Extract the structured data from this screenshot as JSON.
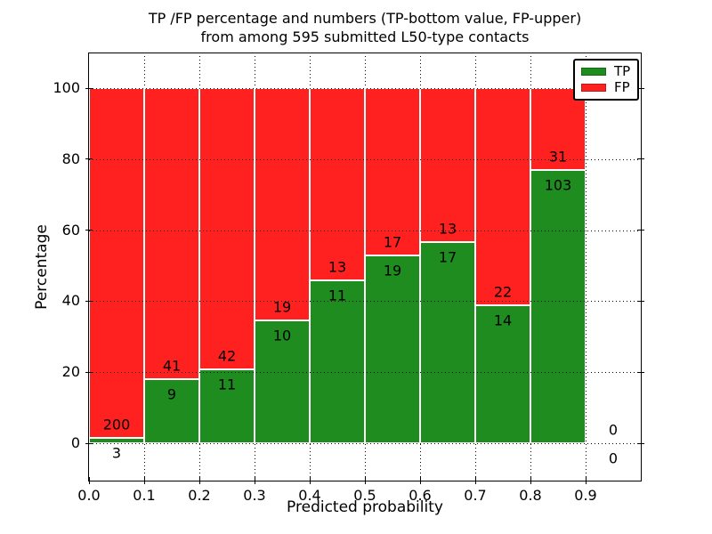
{
  "title": {
    "line1": "TP /FP percentage and numbers (TP-bottom value, FP-upper)",
    "line2": "from among 595 submitted L50-type contacts"
  },
  "axes": {
    "ylabel": "Percentage",
    "xlabel": "Predicted probability",
    "yticks": [
      0,
      20,
      40,
      60,
      80,
      100
    ],
    "xticks": [
      "0.0",
      "0.1",
      "0.2",
      "0.3",
      "0.4",
      "0.5",
      "0.6",
      "0.7",
      "0.8",
      "0.9"
    ]
  },
  "legend": {
    "position": "upper right",
    "items": [
      {
        "label": "TP",
        "color": "#1e8c1e"
      },
      {
        "label": "FP",
        "color": "#ff2020"
      }
    ]
  },
  "chart_data": {
    "type": "bar",
    "stacked": true,
    "normalized": "each 0.1-wide bin scaled to 100%, TP on bottom, FP on top",
    "title": "TP /FP percentage and numbers (TP-bottom value, FP-upper) from among 595 submitted L50-type contacts",
    "xlabel": "Predicted probability",
    "ylabel": "Percentage",
    "total_submitted": 595,
    "xlim": [
      0.0,
      1.0
    ],
    "yticks": [
      0,
      20,
      40,
      60,
      80,
      100
    ],
    "grid": "dotted",
    "legend_position": "upper right",
    "colors": {
      "tp": "#1e8c1e",
      "fp": "#ff2020"
    },
    "bins": [
      {
        "range": [
          0.0,
          0.1
        ],
        "tp": 3,
        "fp": 200,
        "tp_percent": 1.48
      },
      {
        "range": [
          0.1,
          0.2
        ],
        "tp": 9,
        "fp": 41,
        "tp_percent": 18.0
      },
      {
        "range": [
          0.2,
          0.3
        ],
        "tp": 11,
        "fp": 42,
        "tp_percent": 20.75
      },
      {
        "range": [
          0.3,
          0.4
        ],
        "tp": 10,
        "fp": 19,
        "tp_percent": 34.48
      },
      {
        "range": [
          0.4,
          0.5
        ],
        "tp": 11,
        "fp": 13,
        "tp_percent": 45.83
      },
      {
        "range": [
          0.5,
          0.6
        ],
        "tp": 19,
        "fp": 17,
        "tp_percent": 52.78
      },
      {
        "range": [
          0.6,
          0.7
        ],
        "tp": 17,
        "fp": 13,
        "tp_percent": 56.67
      },
      {
        "range": [
          0.7,
          0.8
        ],
        "tp": 14,
        "fp": 22,
        "tp_percent": 38.89
      },
      {
        "range": [
          0.8,
          0.9
        ],
        "tp": 103,
        "fp": 31,
        "tp_percent": 76.87
      },
      {
        "range": [
          0.9,
          1.0
        ],
        "tp": 0,
        "fp": 0,
        "tp_percent": 0
      }
    ],
    "series": [
      {
        "name": "TP",
        "counts": [
          3,
          9,
          11,
          10,
          11,
          19,
          17,
          14,
          103,
          0
        ]
      },
      {
        "name": "FP",
        "counts": [
          200,
          41,
          42,
          19,
          13,
          17,
          13,
          22,
          31,
          0
        ]
      }
    ]
  }
}
